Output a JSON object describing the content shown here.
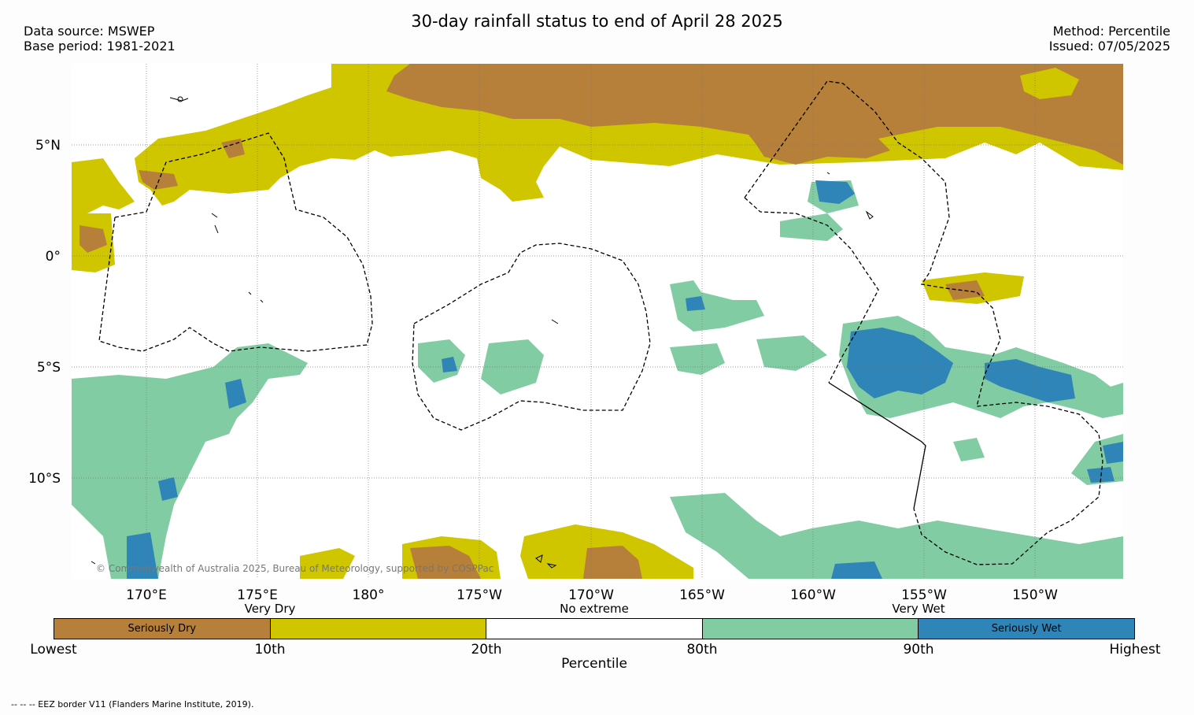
{
  "title": "30-day rainfall status to end of April 28 2025",
  "header_left": {
    "data_source": "Data source: MSWEP",
    "base_period": "Base period: 1981-2021"
  },
  "header_right": {
    "method": "Method: Percentile",
    "issued": "Issued: 07/05/2025"
  },
  "colors": {
    "seriously_dry": "#b67f3a",
    "very_dry": "#d0c600",
    "no_extreme": "#ffffff",
    "very_wet": "#82cca4",
    "seriously_wet": "#2f84b8"
  },
  "map": {
    "lat_labels": [
      "5°N",
      "0°",
      "5°S",
      "10°S"
    ],
    "lon_labels": [
      "170°E",
      "175°E",
      "180°",
      "175°W",
      "170°W",
      "165°W",
      "160°W",
      "155°W",
      "150°W"
    ],
    "copyright": "© Commonwealth of Australia 2025, Bureau of Meteorology, supported by COSPPac"
  },
  "legend": {
    "category_labels": {
      "very_dry": "Very Dry",
      "no_extreme": "No extreme",
      "very_wet": "Very Wet"
    },
    "segments": [
      "Seriously Dry",
      "",
      "",
      "",
      "Seriously Wet"
    ],
    "ticks": [
      "Lowest",
      "10th",
      "20th",
      "80th",
      "90th",
      "Highest"
    ],
    "axis_label": "Percentile"
  },
  "footnote": "-- -- -- EEZ border V11 (Flanders Marine Institute, 2019)."
}
